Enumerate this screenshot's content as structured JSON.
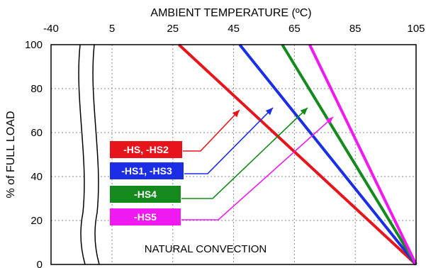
{
  "chart_data": {
    "type": "line",
    "title": "",
    "xlabel": "AMBIENT TEMPERATURE (ºC)",
    "ylabel": "% of FULL LOAD",
    "x_ticks": [
      "-40",
      "5",
      "25",
      "45",
      "65",
      "85",
      "105"
    ],
    "y_ticks": [
      "0",
      "20",
      "40",
      "60",
      "80",
      "100"
    ],
    "xlim": [
      -40,
      105
    ],
    "ylim": [
      0,
      100
    ],
    "x_axis_break": "between -40 and 5",
    "grid": true,
    "annotation": "NATURAL CONVECTION",
    "series": [
      {
        "name": "-HS, -HS2",
        "color": "#e8141b",
        "points": [
          [
            27,
            100
          ],
          [
            105,
            0
          ]
        ]
      },
      {
        "name": "-HS1, -HS3",
        "color": "#1b2ee6",
        "points": [
          [
            47,
            100
          ],
          [
            105,
            0
          ]
        ]
      },
      {
        "name": "-HS4",
        "color": "#138a1b",
        "points": [
          [
            61,
            100
          ],
          [
            105,
            0
          ]
        ]
      },
      {
        "name": "-HS5",
        "color": "#f01af0",
        "points": [
          [
            70,
            100
          ],
          [
            105,
            0
          ]
        ]
      }
    ]
  }
}
